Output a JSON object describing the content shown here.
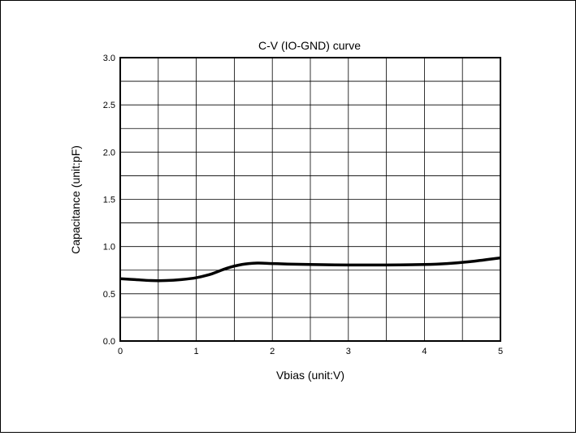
{
  "chart_data": {
    "type": "line",
    "title": "C-V (IO-GND) curve",
    "xlabel": "Vbias (unit:V)",
    "ylabel": "Capacitance (unit:pF)",
    "xlim": [
      0,
      5
    ],
    "ylim": [
      0.0,
      3.0
    ],
    "x_ticks": [
      "0",
      "1",
      "2",
      "3",
      "4",
      "5"
    ],
    "y_ticks": [
      "0.0",
      "0.5",
      "1.0",
      "1.5",
      "2.0",
      "2.5",
      "3.0"
    ],
    "grid": true,
    "colors": {
      "line": "#000000",
      "grid": "#000000"
    },
    "series": [
      {
        "x": [
          0.0,
          0.2,
          0.4,
          0.6,
          0.8,
          1.0,
          1.2,
          1.4,
          1.6,
          1.8,
          2.0,
          2.2,
          2.5,
          3.0,
          3.5,
          4.0,
          4.3,
          4.6,
          5.0
        ],
        "values": [
          0.66,
          0.65,
          0.64,
          0.64,
          0.65,
          0.67,
          0.71,
          0.77,
          0.81,
          0.825,
          0.82,
          0.815,
          0.81,
          0.805,
          0.805,
          0.81,
          0.82,
          0.84,
          0.88
        ]
      }
    ]
  }
}
